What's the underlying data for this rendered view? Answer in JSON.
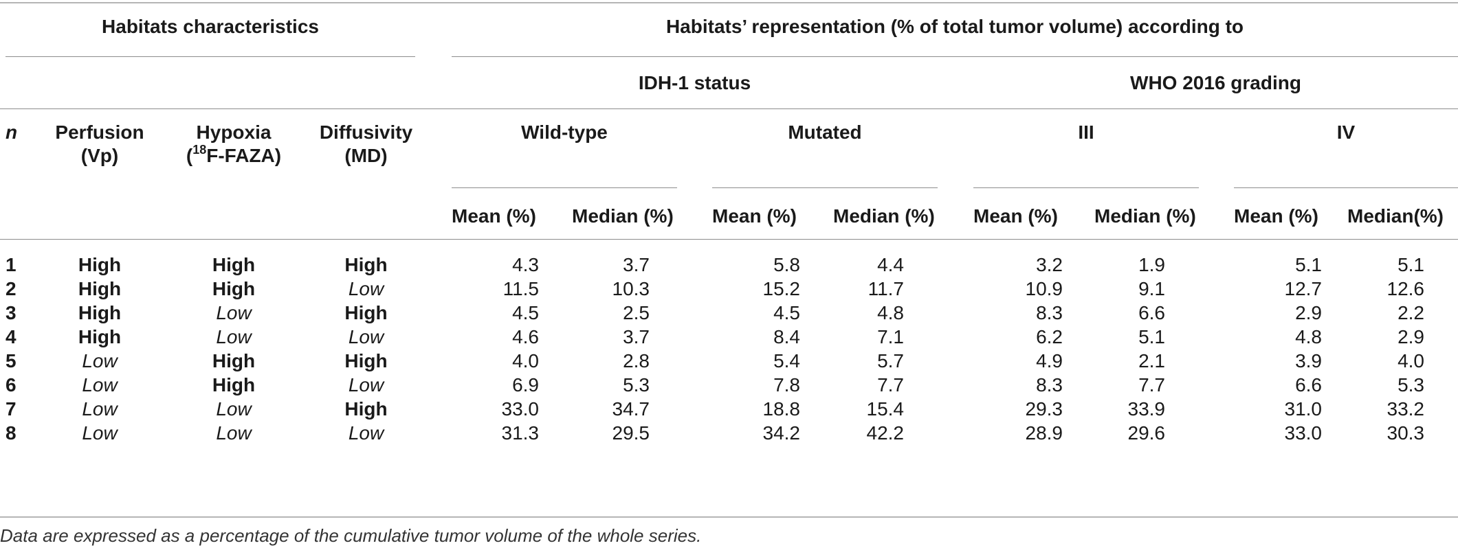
{
  "header": {
    "habitats_characteristics": "Habitats characteristics",
    "representation": "Habitats’ representation (% of total tumor volume) according to",
    "idh_status": "IDH-1 status",
    "who_grading": "WHO 2016 grading",
    "n": "n",
    "perfusion_line1": "Perfusion",
    "perfusion_line2": "(Vp)",
    "hypoxia_line1": "Hypoxia",
    "hypoxia_sup": "18",
    "hypoxia_line2": "F-FAZA)",
    "hypoxia_paren": "(",
    "diffusivity_line1": "Diffusivity",
    "diffusivity_line2": "(MD)",
    "wild_type": "Wild-type",
    "mutated": "Mutated",
    "grade_iii": "III",
    "grade_iv": "IV",
    "mean1": "Mean (%)",
    "median1": "Median (%)",
    "mean2": "Mean (%)",
    "median2": "Median (%)",
    "mean3": "Mean (%)",
    "median3": "Median (%)",
    "mean4": "Mean (%)",
    "median4": "Median(%)"
  },
  "rows": [
    {
      "n": "1",
      "perf": "High",
      "hyp": "High",
      "diff": "High",
      "v": [
        "4.3",
        "3.7",
        "5.8",
        "4.4",
        "3.2",
        "1.9",
        "5.1",
        "5.1"
      ]
    },
    {
      "n": "2",
      "perf": "High",
      "hyp": "High",
      "diff": "Low",
      "v": [
        "11.5",
        "10.3",
        "15.2",
        "11.7",
        "10.9",
        "9.1",
        "12.7",
        "12.6"
      ]
    },
    {
      "n": "3",
      "perf": "High",
      "hyp": "Low",
      "diff": "High",
      "v": [
        "4.5",
        "2.5",
        "4.5",
        "4.8",
        "8.3",
        "6.6",
        "2.9",
        "2.2"
      ]
    },
    {
      "n": "4",
      "perf": "High",
      "hyp": "Low",
      "diff": "Low",
      "v": [
        "4.6",
        "3.7",
        "8.4",
        "7.1",
        "6.2",
        "5.1",
        "4.8",
        "2.9"
      ]
    },
    {
      "n": "5",
      "perf": "Low",
      "hyp": "High",
      "diff": "High",
      "v": [
        "4.0",
        "2.8",
        "5.4",
        "5.7",
        "4.9",
        "2.1",
        "3.9",
        "4.0"
      ]
    },
    {
      "n": "6",
      "perf": "Low",
      "hyp": "High",
      "diff": "Low",
      "v": [
        "6.9",
        "5.3",
        "7.8",
        "7.7",
        "8.3",
        "7.7",
        "6.6",
        "5.3"
      ]
    },
    {
      "n": "7",
      "perf": "Low",
      "hyp": "Low",
      "diff": "High",
      "v": [
        "33.0",
        "34.7",
        "18.8",
        "15.4",
        "29.3",
        "33.9",
        "31.0",
        "33.2"
      ]
    },
    {
      "n": "8",
      "perf": "Low",
      "hyp": "Low",
      "diff": "Low",
      "v": [
        "31.3",
        "29.5",
        "34.2",
        "42.2",
        "28.9",
        "29.6",
        "33.0",
        "30.3"
      ]
    }
  ],
  "footnote": "Data are expressed as a percentage of the cumulative tumor volume of the whole series."
}
